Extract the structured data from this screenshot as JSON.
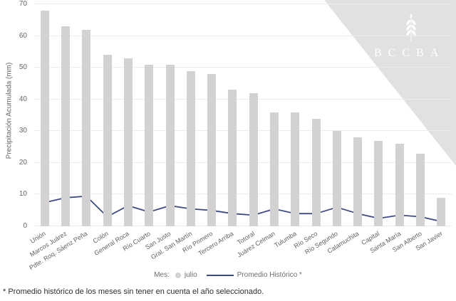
{
  "chart_data": {
    "type": "bar",
    "title": "",
    "xlabel": "",
    "ylabel": "Precipitación Acumulada (mm)",
    "ylim": [
      0,
      70
    ],
    "yticks": [
      0,
      10,
      20,
      30,
      40,
      50,
      60,
      70
    ],
    "grid": "horizontal",
    "legend_position": "bottom",
    "categories": [
      "Unión",
      "Marcos Juárez",
      "Pdte. Roq. Sáenz Peña",
      "Colón",
      "General Roca",
      "Río Cuarto",
      "San Justo",
      "Gral. San Martín",
      "Río Primero",
      "Tercero Arriba",
      "Totoral",
      "Juárez Celman",
      "Tulumba",
      "Río Seco",
      "Río Segundo",
      "Calamuchita",
      "Capital",
      "Santa María",
      "San Alberto",
      "San Javier"
    ],
    "series": [
      {
        "name": "julio",
        "type": "bar",
        "color": "#d2d2d2",
        "values": [
          68,
          63,
          62,
          54,
          53,
          51,
          51,
          49,
          48,
          43,
          42,
          36,
          36,
          34,
          30,
          28,
          27,
          26,
          23,
          9
        ]
      },
      {
        "name": "Promedio Histórico *",
        "type": "line",
        "color": "#3d4c86",
        "values": [
          7.5,
          9,
          9.5,
          3,
          6.5,
          4.5,
          6.5,
          5.5,
          5,
          4,
          3.5,
          5.5,
          4,
          4,
          6,
          4,
          2.5,
          3.5,
          3,
          1.5
        ]
      }
    ]
  },
  "legend": {
    "prefix": "Mes:",
    "bar_item": "julio",
    "line_item": "Promedio Histórico *"
  },
  "footnote": "* Promedio histórico de los meses sin tener en cuenta el año seleccionado.",
  "logo": {
    "text": "BCCBA"
  },
  "colors": {
    "bar": "#d2d2d2",
    "line": "#3d4c86",
    "grid": "#ececec",
    "axis_text": "#666666",
    "watermark": "#e1e1e1",
    "logo_text": "#ffffff",
    "footnote_text": "#2f2f2f"
  }
}
